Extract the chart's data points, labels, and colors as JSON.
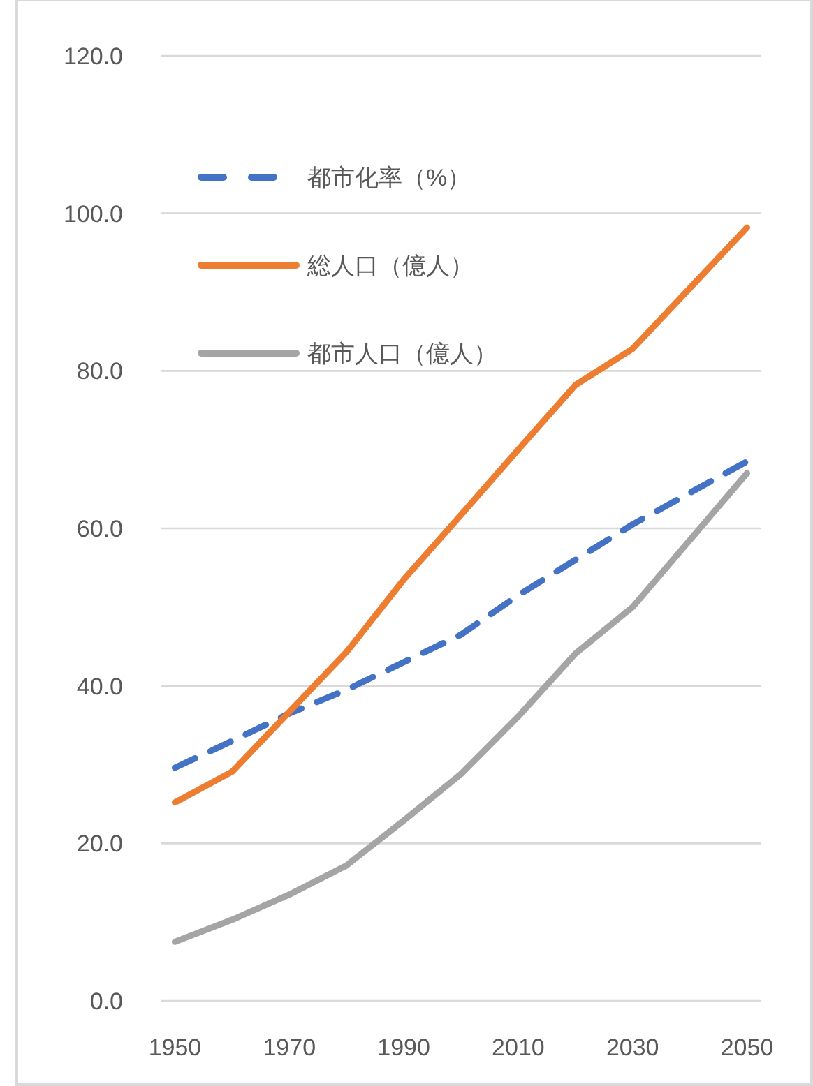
{
  "chart_data": {
    "type": "line",
    "x": [
      1950,
      1960,
      1970,
      1980,
      1990,
      2000,
      2010,
      2020,
      2030,
      2040,
      2050
    ],
    "series": [
      {
        "name": "都市化率（%）",
        "color": "#4472c4",
        "line_style": "dashed",
        "values": [
          29.6,
          33.0,
          36.5,
          39.5,
          43.0,
          46.5,
          51.5,
          56.0,
          60.5,
          64.5,
          68.5
        ]
      },
      {
        "name": "総人口（億人）",
        "color": "#ed7d31",
        "line_style": "solid",
        "values": [
          25.2,
          29.1,
          36.7,
          44.3,
          53.5,
          61.7,
          70.0,
          78.2,
          82.8,
          90.5,
          98.2
        ]
      },
      {
        "name": "都市人口（億人）",
        "color": "#a5a5a5",
        "line_style": "solid",
        "values": [
          7.5,
          10.3,
          13.5,
          17.2,
          22.9,
          28.8,
          36.1,
          44.1,
          50.0,
          58.5,
          67.0
        ]
      }
    ],
    "xlim": [
      1947.5,
      2052.5
    ],
    "xticks": [
      1950,
      1970,
      1990,
      2010,
      2030,
      2050
    ],
    "ylim": [
      0,
      120
    ],
    "yticks": [
      {
        "value": 0,
        "label": "0.0"
      },
      {
        "value": 20,
        "label": "20.0"
      },
      {
        "value": 40,
        "label": "40.0"
      },
      {
        "value": 60,
        "label": "60.0"
      },
      {
        "value": 80,
        "label": "80.0"
      },
      {
        "value": 100,
        "label": "100.0"
      },
      {
        "value": 120,
        "label": "120.0"
      }
    ],
    "grid": "y",
    "legend": "top left"
  }
}
